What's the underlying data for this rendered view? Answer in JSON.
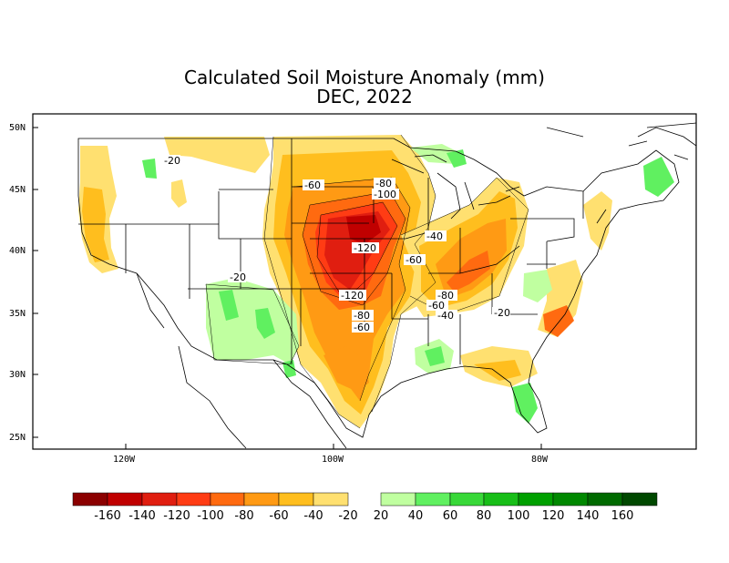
{
  "title": "Calculated Soil Moisture Anomaly (mm)",
  "subtitle": "DEC, 2022",
  "lat_labels": [
    "50N",
    "45N",
    "40N",
    "35N",
    "30N",
    "25N"
  ],
  "lon_labels": [
    "120W",
    "100W",
    "80W"
  ],
  "contour_labels": [
    "-20",
    "-60",
    "-80",
    "-100",
    "-120",
    "-40",
    "-60",
    "-80",
    "-60",
    "-40",
    "-20",
    "-20",
    "-120",
    "-80",
    "-60"
  ],
  "legend": {
    "negative": [
      {
        "label": "-160",
        "color": "#8b0000"
      },
      {
        "label": "-140",
        "color": "#c00000"
      },
      {
        "label": "-120",
        "color": "#e01e10"
      },
      {
        "label": "-100",
        "color": "#ff3c14"
      },
      {
        "label": "-80",
        "color": "#ff6a10"
      },
      {
        "label": "-60",
        "color": "#ff9a14"
      },
      {
        "label": "-40",
        "color": "#ffbe1e"
      },
      {
        "label": "-20",
        "color": "#ffe070"
      }
    ],
    "positive": [
      {
        "label": "20",
        "color": "#c0ffa0"
      },
      {
        "label": "40",
        "color": "#60f060"
      },
      {
        "label": "60",
        "color": "#38d838"
      },
      {
        "label": "80",
        "color": "#18be18"
      },
      {
        "label": "100",
        "color": "#00a000"
      },
      {
        "label": "120",
        "color": "#008800"
      },
      {
        "label": "140",
        "color": "#006a00"
      },
      {
        "label": "160",
        "color": "#004800"
      }
    ]
  }
}
